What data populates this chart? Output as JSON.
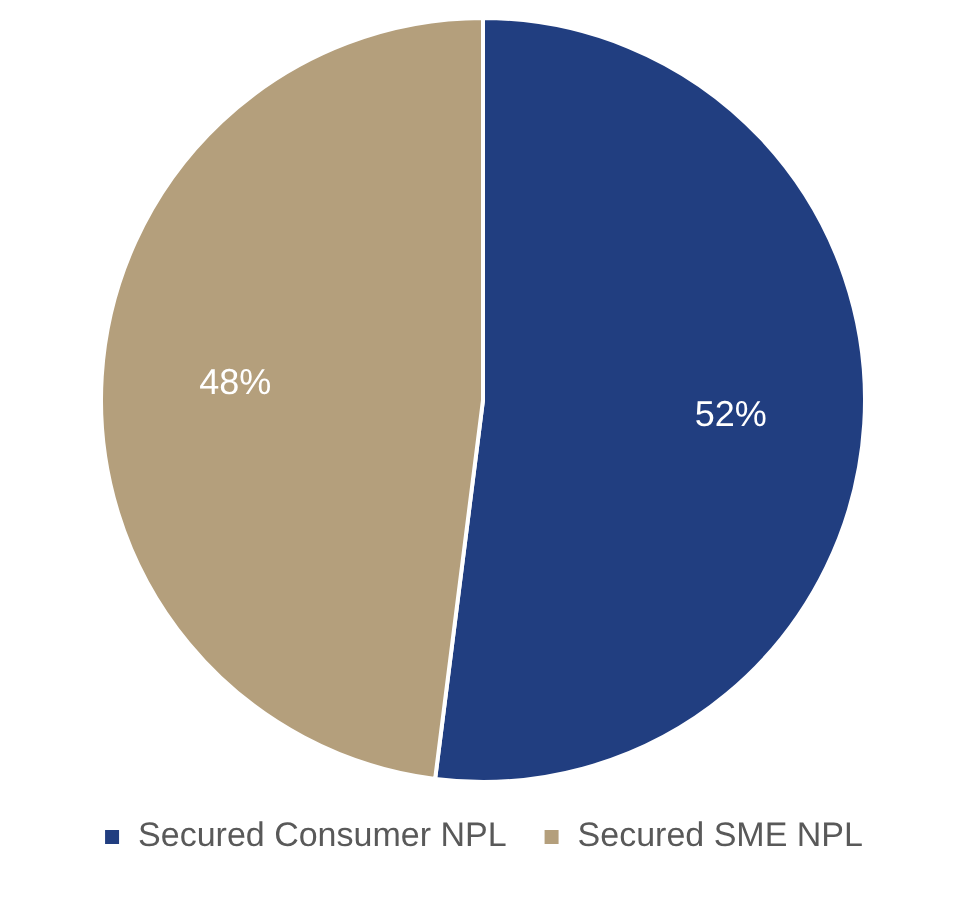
{
  "chart_data": {
    "type": "pie",
    "categories": [
      "Secured Consumer NPL",
      "Secured SME NPL"
    ],
    "values": [
      52,
      48
    ],
    "colors": [
      "#213e80",
      "#b49f7c"
    ],
    "value_labels": [
      "52%",
      "48%"
    ],
    "legend": "bottom"
  }
}
